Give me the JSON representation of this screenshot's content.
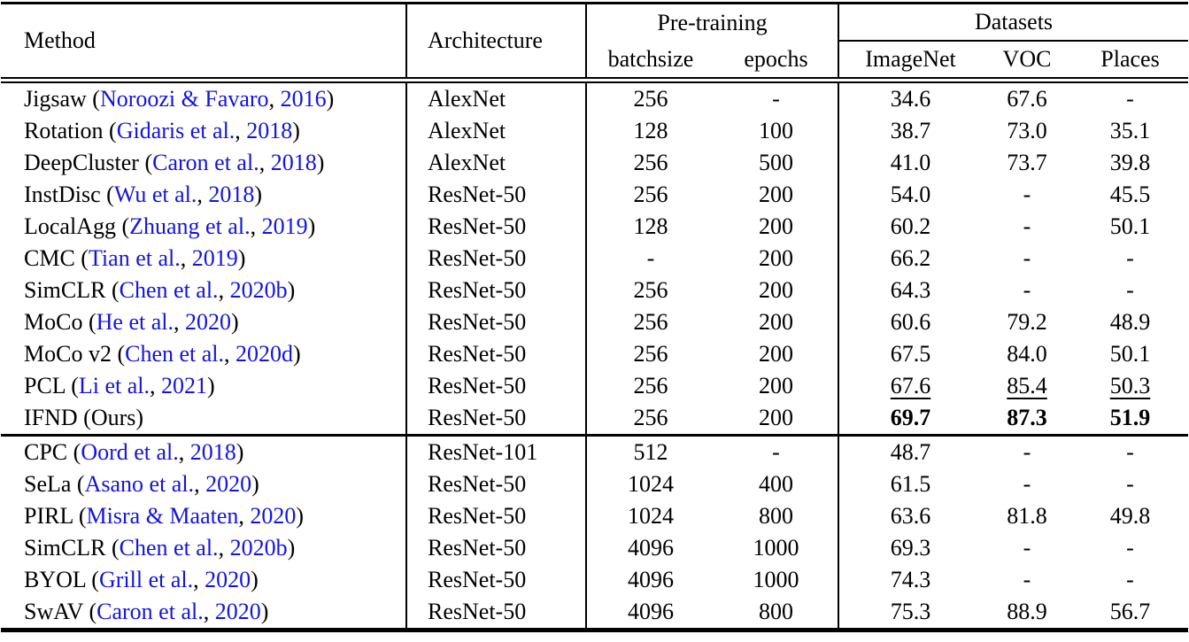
{
  "colors": {
    "citation": "#1414dc",
    "text": "#000000",
    "background": "#ffffff"
  },
  "table": {
    "headers": {
      "method": "Method",
      "architecture": "Architecture",
      "pretraining_group": "Pre-training",
      "batchsize": "batchsize",
      "epochs": "epochs",
      "datasets_group": "Datasets",
      "imagenet": "ImageNet",
      "voc": "VOC",
      "places": "Places"
    },
    "groups": [
      {
        "name": "block-1",
        "rows": [
          {
            "method": "Jigsaw",
            "authors": "Noroozi & Favaro",
            "year": "2016",
            "arch": "AlexNet",
            "batchsize": "256",
            "epochs": "-",
            "imagenet": "34.6",
            "voc": "67.6",
            "places": "-",
            "emphasis": "none"
          },
          {
            "method": "Rotation",
            "authors": "Gidaris et al.",
            "year": "2018",
            "arch": "AlexNet",
            "batchsize": "128",
            "epochs": "100",
            "imagenet": "38.7",
            "voc": "73.0",
            "places": "35.1",
            "emphasis": "none"
          },
          {
            "method": "DeepCluster",
            "authors": "Caron et al.",
            "year": "2018",
            "arch": "AlexNet",
            "batchsize": "256",
            "epochs": "500",
            "imagenet": "41.0",
            "voc": "73.7",
            "places": "39.8",
            "emphasis": "none"
          },
          {
            "method": "InstDisc",
            "authors": "Wu et al.",
            "year": "2018",
            "arch": "ResNet-50",
            "batchsize": "256",
            "epochs": "200",
            "imagenet": "54.0",
            "voc": "-",
            "places": "45.5",
            "emphasis": "none"
          },
          {
            "method": "LocalAgg",
            "authors": "Zhuang et al.",
            "year": "2019",
            "arch": "ResNet-50",
            "batchsize": "128",
            "epochs": "200",
            "imagenet": "60.2",
            "voc": "-",
            "places": "50.1",
            "emphasis": "none"
          },
          {
            "method": "CMC",
            "authors": "Tian et al.",
            "year": "2019",
            "arch": "ResNet-50",
            "batchsize": "-",
            "epochs": "200",
            "imagenet": "66.2",
            "voc": "-",
            "places": "-",
            "emphasis": "none"
          },
          {
            "method": "SimCLR",
            "authors": "Chen et al.",
            "year": "2020b",
            "arch": "ResNet-50",
            "batchsize": "256",
            "epochs": "200",
            "imagenet": "64.3",
            "voc": "-",
            "places": "-",
            "emphasis": "none"
          },
          {
            "method": "MoCo",
            "authors": "He et al.",
            "year": "2020",
            "arch": "ResNet-50",
            "batchsize": "256",
            "epochs": "200",
            "imagenet": "60.6",
            "voc": "79.2",
            "places": "48.9",
            "emphasis": "none"
          },
          {
            "method": "MoCo v2",
            "authors": "Chen et al.",
            "year": "2020d",
            "arch": "ResNet-50",
            "batchsize": "256",
            "epochs": "200",
            "imagenet": "67.5",
            "voc": "84.0",
            "places": "50.1",
            "emphasis": "none"
          },
          {
            "method": "PCL",
            "authors": "Li et al.",
            "year": "2021",
            "arch": "ResNet-50",
            "batchsize": "256",
            "epochs": "200",
            "imagenet": "67.6",
            "voc": "85.4",
            "places": "50.3",
            "emphasis": "underline"
          },
          {
            "method": "IFND",
            "note": "Ours",
            "arch": "ResNet-50",
            "batchsize": "256",
            "epochs": "200",
            "imagenet": "69.7",
            "voc": "87.3",
            "places": "51.9",
            "emphasis": "bold"
          }
        ]
      },
      {
        "name": "block-2",
        "rows": [
          {
            "method": "CPC",
            "authors": "Oord et al.",
            "year": "2018",
            "arch": "ResNet-101",
            "batchsize": "512",
            "epochs": "-",
            "imagenet": "48.7",
            "voc": "-",
            "places": "-",
            "emphasis": "none"
          },
          {
            "method": "SeLa",
            "authors": "Asano et al.",
            "year": "2020",
            "arch": "ResNet-50",
            "batchsize": "1024",
            "epochs": "400",
            "imagenet": "61.5",
            "voc": "-",
            "places": "-",
            "emphasis": "none"
          },
          {
            "method": "PIRL",
            "authors": "Misra & Maaten",
            "year": "2020",
            "arch": "ResNet-50",
            "batchsize": "1024",
            "epochs": "800",
            "imagenet": "63.6",
            "voc": "81.8",
            "places": "49.8",
            "emphasis": "none"
          },
          {
            "method": "SimCLR",
            "authors": "Chen et al.",
            "year": "2020b",
            "arch": "ResNet-50",
            "batchsize": "4096",
            "epochs": "1000",
            "imagenet": "69.3",
            "voc": "-",
            "places": "-",
            "emphasis": "none"
          },
          {
            "method": "BYOL",
            "authors": "Grill et al.",
            "year": "2020",
            "arch": "ResNet-50",
            "batchsize": "4096",
            "epochs": "1000",
            "imagenet": "74.3",
            "voc": "-",
            "places": "-",
            "emphasis": "none"
          },
          {
            "method": "SwAV",
            "authors": "Caron et al.",
            "year": "2020",
            "arch": "ResNet-50",
            "batchsize": "4096",
            "epochs": "800",
            "imagenet": "75.3",
            "voc": "88.9",
            "places": "56.7",
            "emphasis": "none"
          }
        ]
      }
    ]
  }
}
